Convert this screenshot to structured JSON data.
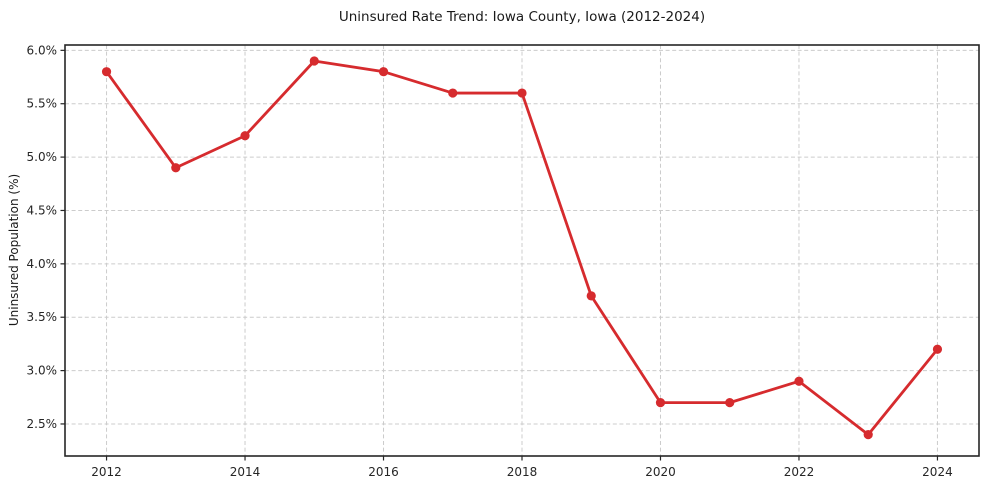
{
  "chart_data": {
    "type": "line",
    "title": "Uninsured Rate Trend: Iowa County, Iowa (2012-2024)",
    "xlabel": "",
    "ylabel": "Uninsured Population (%)",
    "x": [
      2012,
      2013,
      2014,
      2015,
      2016,
      2017,
      2018,
      2019,
      2020,
      2021,
      2022,
      2023,
      2024
    ],
    "values": [
      5.8,
      4.9,
      5.2,
      5.9,
      5.8,
      5.6,
      5.6,
      3.7,
      2.7,
      2.7,
      2.9,
      2.4,
      3.2
    ],
    "xticks": [
      2012,
      2014,
      2016,
      2018,
      2020,
      2022,
      2024
    ],
    "xtick_labels": [
      "2012",
      "2014",
      "2016",
      "2018",
      "2020",
      "2022",
      "2024"
    ],
    "yticks": [
      2.5,
      3.0,
      3.5,
      4.0,
      4.5,
      5.0,
      5.5,
      6.0
    ],
    "ytick_labels": [
      "2.5%",
      "3.0%",
      "3.5%",
      "4.0%",
      "4.5%",
      "5.0%",
      "5.5%",
      "6.0%"
    ],
    "xlim": [
      2011.4,
      2024.6
    ],
    "ylim": [
      2.2,
      6.05
    ],
    "grid": true,
    "legend": "none",
    "line_color": "#d62b2e",
    "marker": "circle",
    "grid_color": "#cccccc",
    "spine_color": "#262626",
    "background_color": "#ffffff"
  }
}
